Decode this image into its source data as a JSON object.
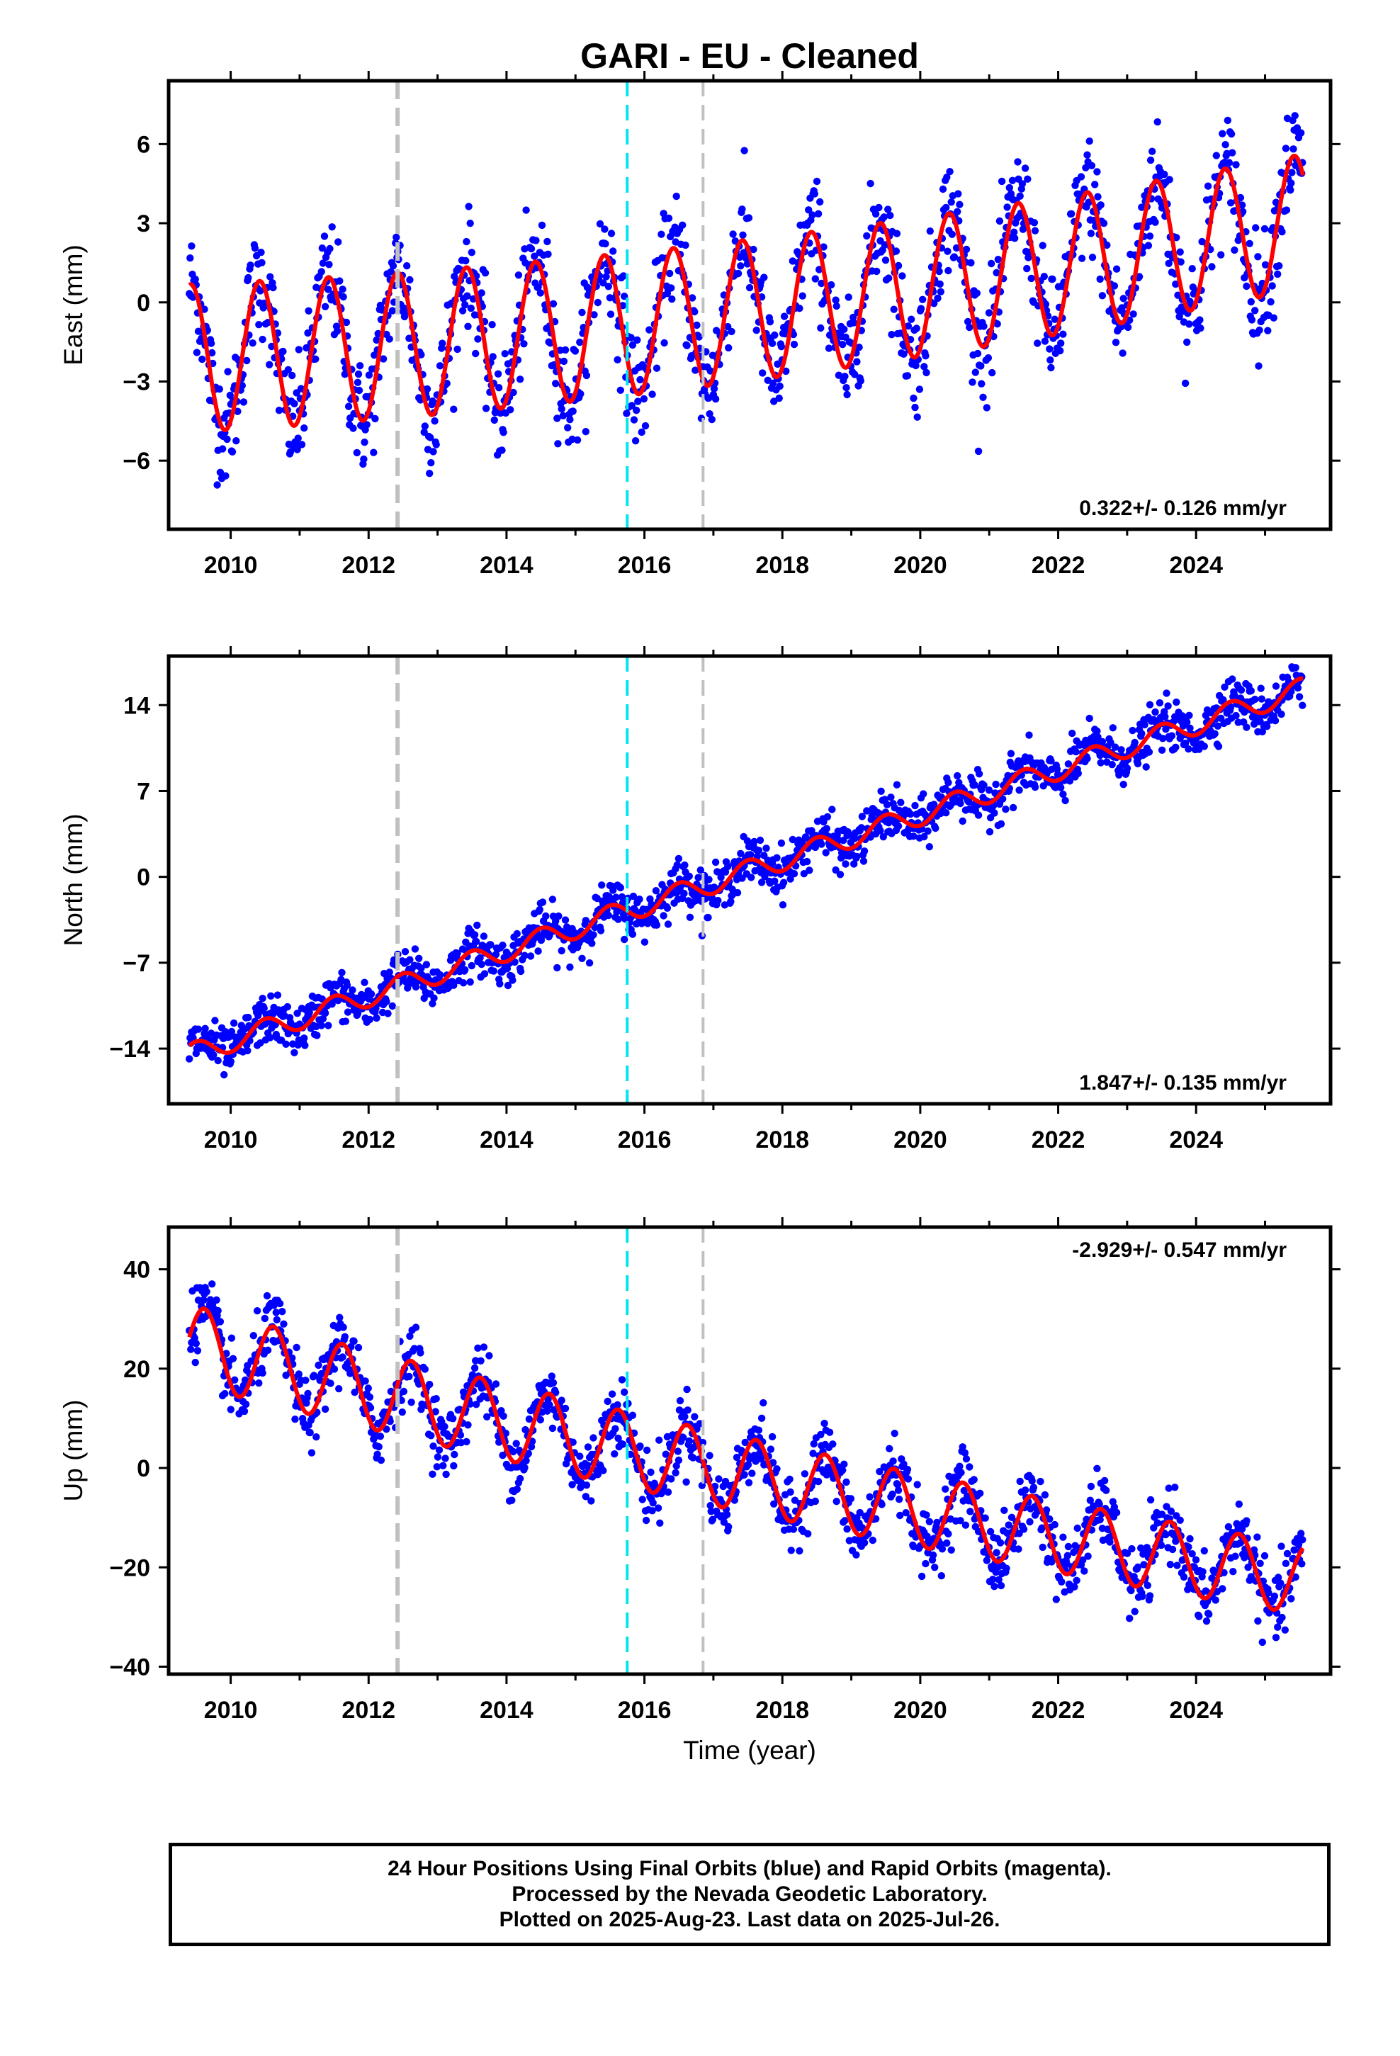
{
  "title": "GARI  - EU - Cleaned",
  "colors": {
    "data_points": "#0000ff",
    "fit_line": "#ff0000",
    "event_gray": "#c0c0c0",
    "event_cyan": "#00e5ee",
    "frame": "#000000"
  },
  "event_lines": [
    {
      "year": 2012.42,
      "color": "#c0c0c0",
      "style": "long-dash"
    },
    {
      "year": 2015.75,
      "color": "#00e5ee",
      "style": "dash"
    },
    {
      "year": 2016.85,
      "color": "#c0c0c0",
      "style": "dash"
    }
  ],
  "chart_data": [
    {
      "type": "scatter",
      "panel": "east",
      "ylabel": "East (mm)",
      "xlim": [
        2009.1,
        2025.95
      ],
      "ylim": [
        -8.6,
        8.4
      ],
      "xticks": [
        2010,
        2012,
        2014,
        2016,
        2018,
        2020,
        2022,
        2024
      ],
      "yticks": [
        -6,
        -3,
        0,
        3,
        6
      ],
      "ytick_labels": [
        "−6",
        "−3",
        "0",
        "3",
        "6"
      ],
      "rate_text": "0.322+/- 0.126 mm/yr",
      "rate_position": "bottom-right",
      "model": {
        "t0": 2009.4,
        "t1": 2025.55,
        "ref_year": 2017.5,
        "offset": -0.3,
        "rate": 0.322,
        "quad": 0.012,
        "amp_early": 2.8,
        "amp_late": 2.55,
        "phase_year": 0.42,
        "noise_sd": 1.05
      },
      "series": [
        {
          "name": "",
          "kind": "daily_positions",
          "color": "#0000ff"
        },
        {
          "name": "",
          "kind": "seasonal_fit",
          "color": "#ff0000"
        }
      ]
    },
    {
      "type": "scatter",
      "panel": "north",
      "ylabel": "North (mm)",
      "xlim": [
        2009.1,
        2025.95
      ],
      "ylim": [
        -18.5,
        18.0
      ],
      "xticks": [
        2010,
        2012,
        2014,
        2016,
        2018,
        2020,
        2022,
        2024
      ],
      "yticks": [
        -14,
        -7,
        0,
        7,
        14
      ],
      "ytick_labels": [
        "−14",
        "−7",
        "0",
        "7",
        "14"
      ],
      "rate_text": "1.847+/- 0.135 mm/yr",
      "rate_position": "bottom-right",
      "model": {
        "t0": 2009.4,
        "t1": 2025.55,
        "ref_year": 2017.25,
        "offset": 0.0,
        "rate": 1.847,
        "quad": 0.0,
        "amp_early": 0.9,
        "amp_late": 0.9,
        "phase_year": 0.5,
        "noise_sd": 0.95
      },
      "series": [
        {
          "name": "",
          "kind": "daily_positions",
          "color": "#0000ff"
        },
        {
          "name": "",
          "kind": "seasonal_fit",
          "color": "#ff0000"
        }
      ]
    },
    {
      "type": "scatter",
      "panel": "up",
      "ylabel": "Up (mm)",
      "xlabel": "Time (year)",
      "xlim": [
        2009.1,
        2025.95
      ],
      "ylim": [
        -41.5,
        48.5
      ],
      "xticks": [
        2010,
        2012,
        2014,
        2016,
        2018,
        2020,
        2022,
        2024
      ],
      "yticks": [
        -40,
        -20,
        0,
        20,
        40
      ],
      "ytick_labels": [
        "−40",
        "−20",
        "0",
        "20",
        "40"
      ],
      "rate_text": "-2.929+/- 0.547 mm/yr",
      "rate_position": "top-right",
      "model": {
        "t0": 2009.4,
        "t1": 2025.55,
        "ref_year": 2017.5,
        "offset": -1.5,
        "rate": -2.929,
        "quad": 0.04,
        "amp_early": 8.0,
        "amp_late": 7.0,
        "phase_year": 0.62,
        "noise_sd": 3.4
      },
      "series": [
        {
          "name": "",
          "kind": "daily_positions",
          "color": "#0000ff"
        },
        {
          "name": "",
          "kind": "seasonal_fit",
          "color": "#ff0000"
        }
      ]
    }
  ],
  "caption": {
    "line1": "24 Hour Positions Using Final Orbits (blue) and Rapid Orbits (magenta).",
    "line2": "Processed by the Nevada Geodetic Laboratory.",
    "line3": "Plotted on 2025-Aug-23. Last data on 2025-Jul-26."
  }
}
